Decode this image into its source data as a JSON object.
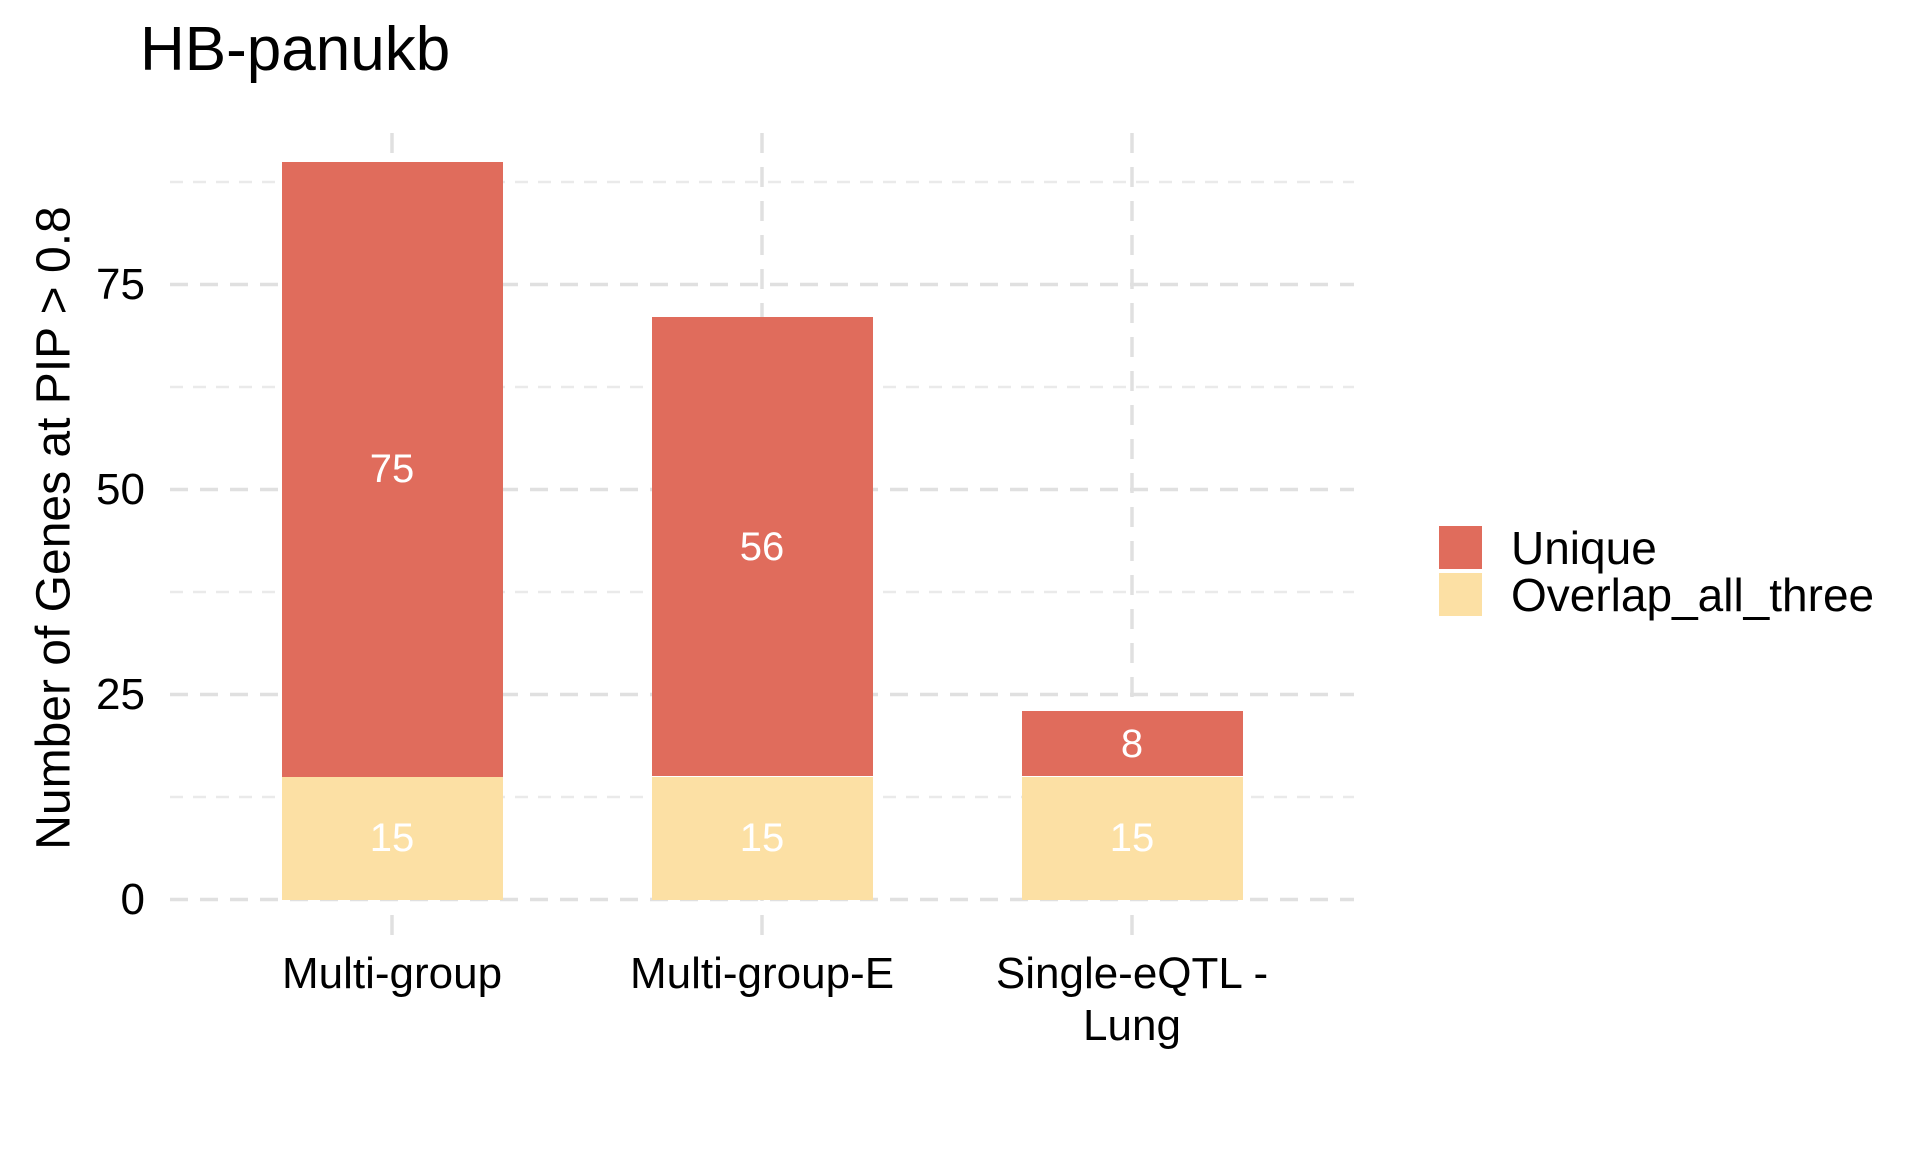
{
  "chart_data": {
    "type": "bar",
    "stacked": true,
    "title": "HB-panukb",
    "ylabel": "Number of Genes at PIP > 0.8",
    "xlabel": "",
    "categories": [
      "Multi-group",
      "Multi-group-E",
      "Single-eQTL -\nLung"
    ],
    "series": [
      {
        "name": "Unique",
        "color": "#E06C5C",
        "values": [
          75,
          56,
          8
        ]
      },
      {
        "name": "Overlap_all_three",
        "color": "#FCE0A4",
        "values": [
          15,
          15,
          15
        ]
      }
    ],
    "stack_order_bottom_to_top": [
      "Overlap_all_three",
      "Unique"
    ],
    "totals": [
      90,
      71,
      23
    ],
    "bar_value_labels": {
      "Unique": [
        "75",
        "56",
        "8"
      ],
      "Overlap_all_three": [
        "15",
        "15",
        "15"
      ]
    },
    "bar_label_color": "#FFFFFF",
    "y_ticks": [
      0,
      25,
      50,
      75
    ],
    "y_minor_gridlines": [
      12.5,
      37.5,
      62.5,
      87.5
    ],
    "ylim": [
      0,
      94.5
    ],
    "grid_style": "dashed",
    "grid_major_color": "#E0E0E0",
    "grid_minor_color": "#EAEAEA",
    "legend_position": "right",
    "legend_items": [
      {
        "label": "Unique",
        "color": "#E06C5C"
      },
      {
        "label": "Overlap_all_three",
        "color": "#FCE0A4"
      }
    ]
  }
}
